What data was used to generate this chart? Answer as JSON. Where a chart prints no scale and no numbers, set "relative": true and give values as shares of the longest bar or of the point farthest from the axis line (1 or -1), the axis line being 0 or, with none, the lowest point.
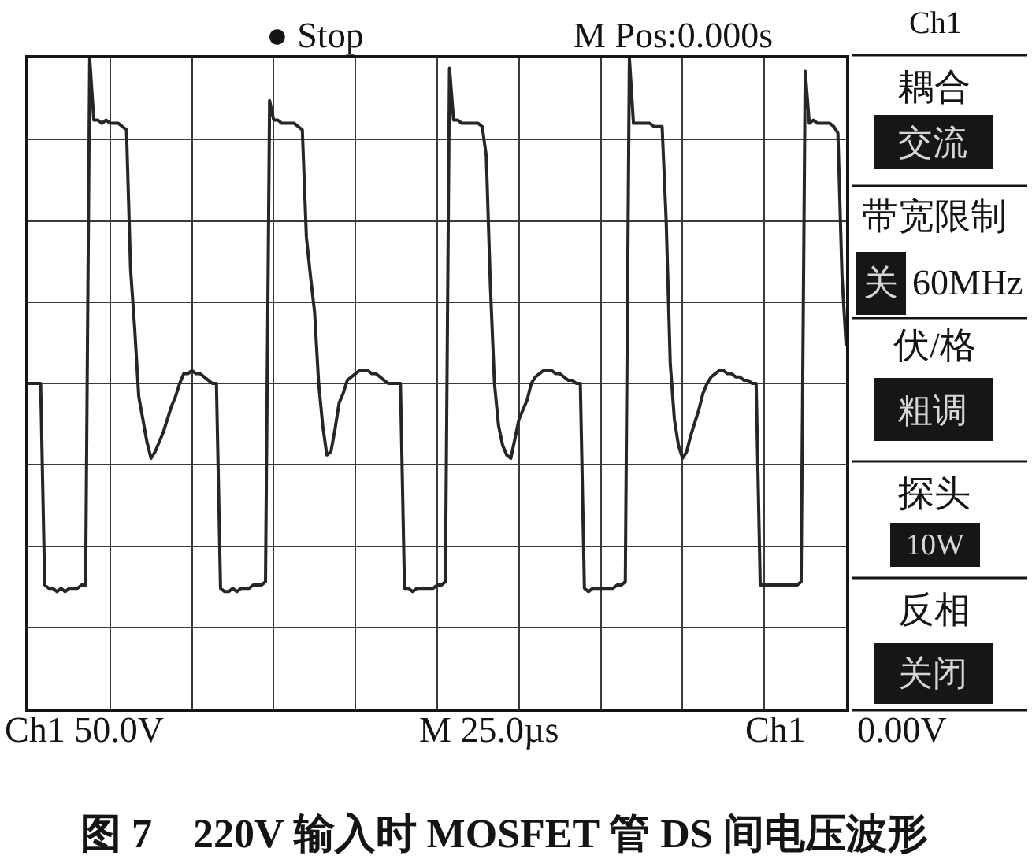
{
  "chart_data": {
    "type": "line",
    "relative": true,
    "grid": true,
    "categories": [
      null,
      null,
      null,
      null,
      null,
      null,
      null,
      null,
      null,
      null,
      null,
      null,
      null,
      null,
      null,
      null,
      null,
      null,
      null,
      null,
      null,
      null,
      null,
      null,
      null,
      null,
      null,
      null,
      null,
      null,
      null,
      null,
      null,
      null,
      null,
      null,
      null,
      null,
      null,
      null,
      null,
      null,
      null,
      null,
      null,
      null,
      null,
      null,
      null,
      null,
      null,
      null,
      null,
      null,
      null,
      null,
      null,
      null,
      null,
      null,
      null,
      null,
      null,
      null,
      null,
      null,
      null,
      null,
      null,
      null,
      null,
      null,
      null,
      null,
      null,
      null,
      null,
      null,
      null,
      null,
      null,
      null,
      null,
      null,
      null,
      null,
      null,
      null,
      null,
      null,
      null,
      null,
      null,
      null,
      null,
      null,
      null,
      null,
      null,
      null,
      null,
      null,
      null,
      null,
      null,
      null,
      null,
      null,
      null,
      null,
      null,
      null,
      null,
      null,
      null,
      null,
      null,
      null,
      null,
      null,
      null,
      null,
      null,
      null,
      null,
      null,
      null,
      null,
      null,
      null,
      null,
      null,
      null,
      null,
      null,
      null,
      null,
      null,
      null,
      null,
      null,
      null,
      null,
      null,
      null,
      null,
      null,
      null,
      null,
      null,
      null,
      null,
      null,
      null,
      null,
      null,
      null,
      null,
      null,
      null,
      null,
      null,
      null,
      null,
      null,
      null,
      null,
      null,
      null,
      null,
      null,
      null,
      null,
      null,
      null,
      null,
      null,
      null,
      null,
      null,
      null,
      null,
      null,
      null,
      null,
      null,
      null,
      null,
      null,
      null,
      null,
      null,
      null,
      null,
      null,
      null,
      null,
      null,
      null,
      null,
      null
    ],
    "series": [
      {
        "color": "#262626",
        "values": [
          0,
          0,
          0,
          0,
          -0.62,
          -0.63,
          -0.63,
          -0.64,
          -0.63,
          -0.64,
          -0.63,
          -0.63,
          -0.63,
          -0.62,
          -0.62,
          1.0,
          0.81,
          0.81,
          0.8,
          0.81,
          0.8,
          0.8,
          0.8,
          0.79,
          0.78,
          0.35,
          0.17,
          -0.04,
          -0.11,
          -0.18,
          -0.23,
          -0.21,
          -0.18,
          -0.15,
          -0.11,
          -0.07,
          -0.04,
          0,
          0.03,
          0.03,
          0.04,
          0.03,
          0.03,
          0.02,
          0.01,
          0,
          0,
          -0.63,
          -0.64,
          -0.64,
          -0.63,
          -0.64,
          -0.63,
          -0.63,
          -0.63,
          -0.62,
          -0.62,
          -0.62,
          -0.61,
          0.87,
          0.81,
          0.81,
          0.8,
          0.8,
          0.8,
          0.8,
          0.79,
          0.78,
          0.45,
          0.33,
          0.22,
          0,
          -0.13,
          -0.22,
          -0.21,
          -0.14,
          -0.06,
          -0.03,
          0.01,
          0.02,
          0.03,
          0.04,
          0.04,
          0.04,
          0.03,
          0.03,
          0.02,
          0.01,
          0,
          0,
          0,
          0,
          -0.63,
          -0.63,
          -0.64,
          -0.63,
          -0.63,
          -0.63,
          -0.63,
          -0.63,
          -0.62,
          -0.62,
          -0.61,
          0.97,
          0.81,
          0.81,
          0.8,
          0.8,
          0.8,
          0.8,
          0.8,
          0.79,
          0.7,
          0.3,
          0,
          -0.13,
          -0.19,
          -0.22,
          -0.23,
          -0.17,
          -0.11,
          -0.08,
          -0.05,
          0,
          0.02,
          0.03,
          0.04,
          0.04,
          0.04,
          0.03,
          0.03,
          0.02,
          0.01,
          0.01,
          0,
          0,
          -0.63,
          -0.64,
          -0.63,
          -0.63,
          -0.63,
          -0.63,
          -0.63,
          -0.63,
          -0.62,
          -0.62,
          -0.61,
          1.0,
          0.8,
          0.8,
          0.8,
          0.8,
          0.8,
          0.79,
          0.79,
          0.79,
          0.5,
          0.06,
          -0.11,
          -0.19,
          -0.23,
          -0.21,
          -0.16,
          -0.12,
          -0.08,
          -0.03,
          0,
          0.02,
          0.03,
          0.04,
          0.04,
          0.03,
          0.03,
          0.02,
          0.02,
          0.01,
          0.01,
          0,
          0,
          -0.62,
          -0.62,
          -0.62,
          -0.62,
          -0.62,
          -0.62,
          -0.62,
          -0.62,
          -0.62,
          -0.62,
          -0.61,
          0.96,
          0.8,
          0.81,
          0.8,
          0.8,
          0.8,
          0.8,
          0.79,
          0.77,
          0.33,
          0.12
        ]
      }
    ],
    "annotations": [
      "● Stop",
      "M Pos:0.000s",
      "Ch1",
      "耦合",
      "交流",
      "带宽限制",
      "关",
      "60MHz",
      "伏/格",
      "粗调",
      "探头",
      "10W",
      "反相",
      "关闭",
      "Ch1 50.0V",
      "M 25.0µs",
      "Ch1",
      "0.00V",
      "图 7　220V 输入时 MOSFET 管 DS 间电压波形"
    ]
  }
}
